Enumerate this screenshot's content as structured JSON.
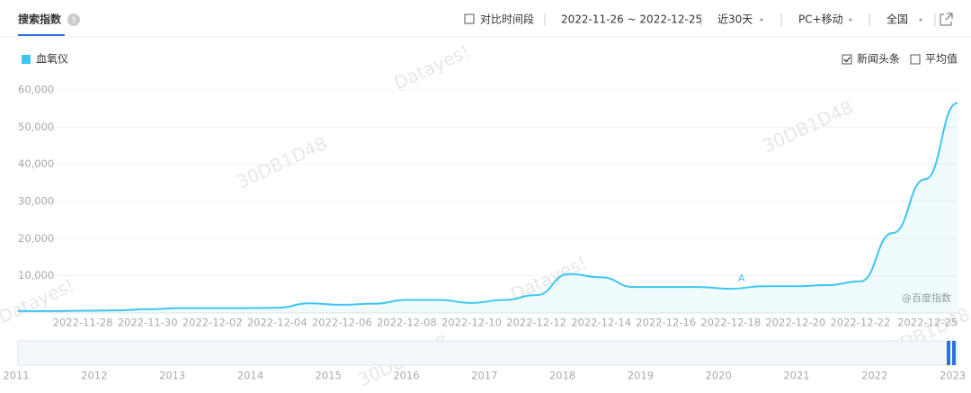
{
  "header": {
    "tab": "搜索指数",
    "compare": "对比时间段",
    "date_range": "2022-11-26 ~ 2022-12-25",
    "period": "近30天",
    "device": "PC+移动",
    "region": "全国"
  },
  "options": {
    "news": "新闻头条",
    "news_checked": true,
    "average": "平均值",
    "average_checked": false
  },
  "watermarks": [
    "Datayes!",
    "30DB1D48"
  ],
  "source": "@百度指数",
  "timeline": [
    "2011",
    "2012",
    "2013",
    "2014",
    "2015",
    "2016",
    "2017",
    "2018",
    "2019",
    "2020",
    "2021",
    "2022",
    "2023"
  ],
  "chart_data": {
    "type": "line",
    "categories": [
      null,
      null,
      "2022-11-28",
      null,
      "2022-11-30",
      null,
      "2022-12-02",
      null,
      "2022-12-04",
      null,
      "2022-12-06",
      null,
      "2022-12-08",
      null,
      "2022-12-10",
      null,
      "2022-12-12",
      null,
      "2022-12-14",
      null,
      "2022-12-16",
      null,
      "2022-12-18",
      null,
      "2022-12-20",
      null,
      "2022-12-22",
      null,
      null,
      "2022-12-25"
    ],
    "series": [
      {
        "name": "血氧仪",
        "color": "#3ec6f0",
        "values": [
          500,
          500,
          600,
          700,
          1000,
          1300,
          1300,
          1300,
          1400,
          2600,
          2200,
          2500,
          3500,
          3500,
          2700,
          3500,
          4800,
          10500,
          9600,
          7000,
          7000,
          7000,
          6500,
          7200,
          7200,
          7500,
          8500,
          21500,
          36000,
          56500
        ]
      }
    ],
    "annotation": "A",
    "ylim": [
      0,
      60000
    ],
    "yticks": [
      {
        "value": 10000,
        "label": "10,000"
      },
      {
        "value": 20000,
        "label": "20,000"
      },
      {
        "value": 30000,
        "label": "30,000"
      },
      {
        "value": 40000,
        "label": "40,000"
      },
      {
        "value": 50000,
        "label": "50,000"
      },
      {
        "value": 60000,
        "label": "60,000"
      }
    ],
    "grid": true
  }
}
